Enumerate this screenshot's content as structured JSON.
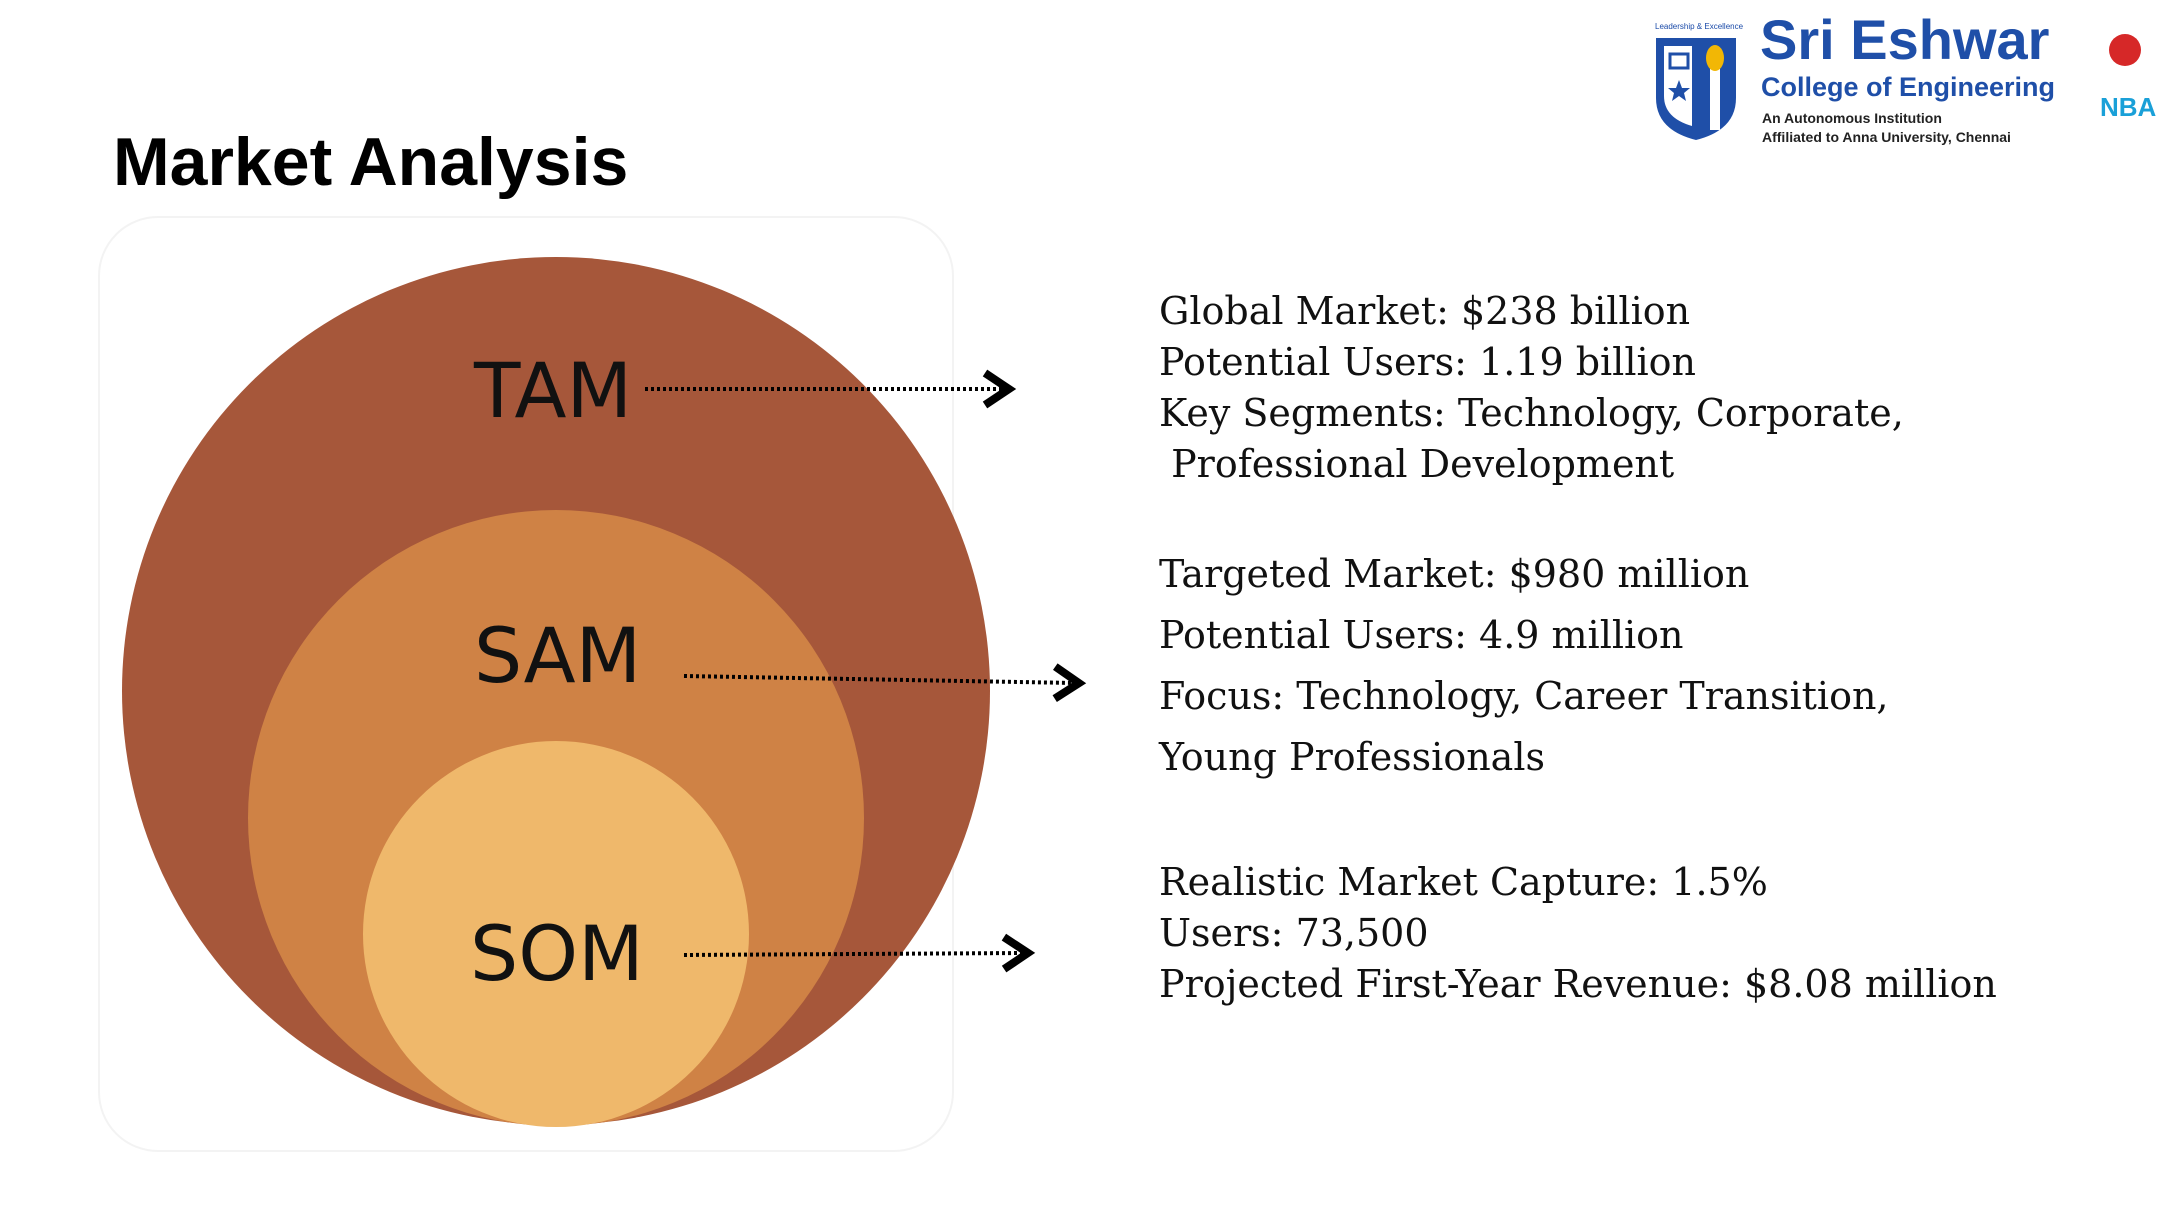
{
  "slide": {
    "title": "Market Analysis"
  },
  "diagram": {
    "circles": [
      {
        "label": "TAM",
        "color": "#a6573a"
      },
      {
        "label": "SAM",
        "color": "#cf8245"
      },
      {
        "label": "SOM",
        "color": "#efb86b"
      }
    ]
  },
  "tam": {
    "lines": [
      "Global Market: $238 billion",
      "Potential Users: 1.19 billion",
      "Key Segments: Technology, Corporate,",
      " Professional Development"
    ]
  },
  "sam": {
    "lines": [
      "Targeted Market: $980 million",
      "Potential Users: 4.9 million",
      "Focus: Technology, Career Transition,",
      "Young Professionals"
    ]
  },
  "som": {
    "lines": [
      "Realistic Market Capture: 1.5%",
      "Users: 73,500",
      "Projected First-Year Revenue: $8.08 million"
    ]
  },
  "logo": {
    "tagline": "Leadership & Excellence",
    "name": "Sri Eshwar",
    "subtitle": "College of Engineering",
    "line1": "An Autonomous Institution",
    "line2": "Affiliated to Anna University, Chennai",
    "nba": "NBA",
    "brand_color": "#1f4fa8"
  }
}
